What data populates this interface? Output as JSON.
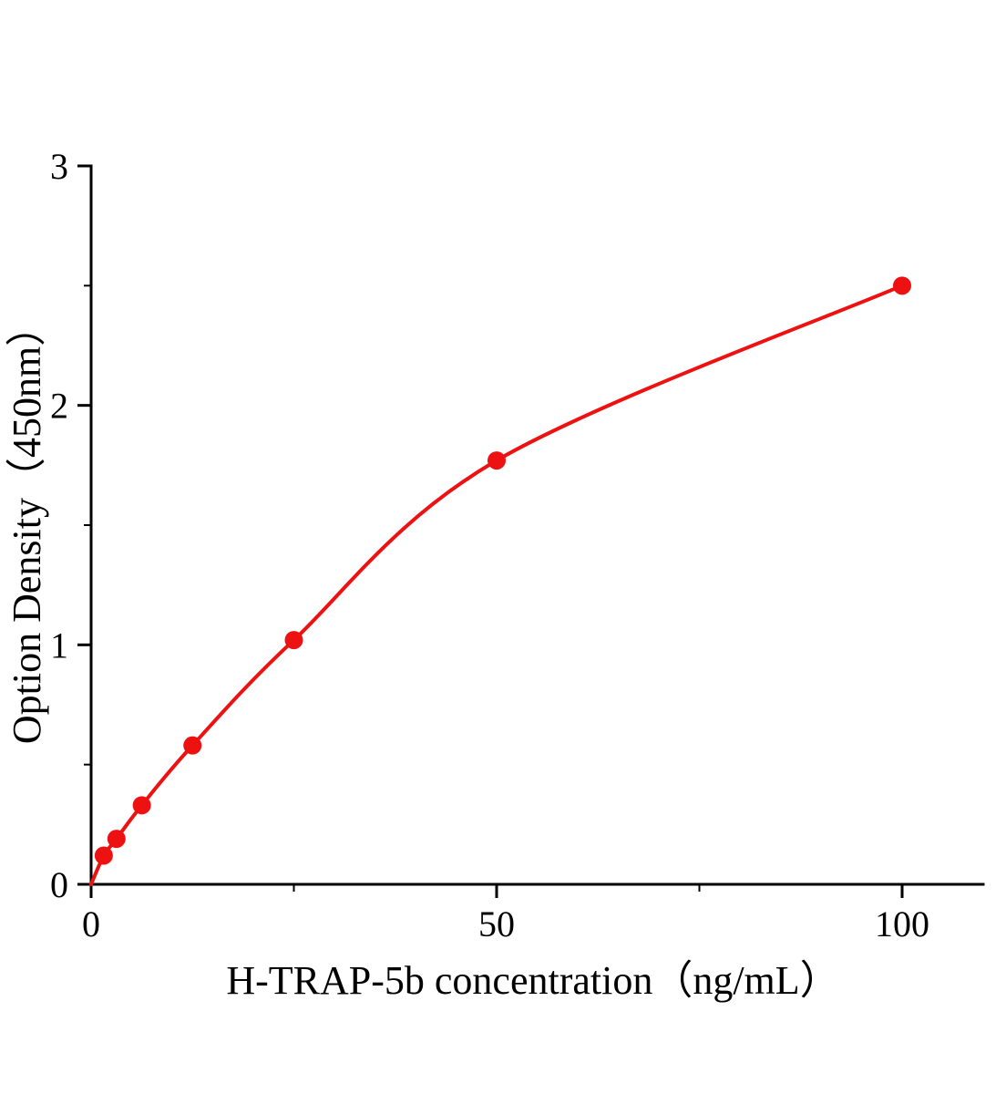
{
  "chart_data": {
    "type": "scatter",
    "title": "",
    "xlabel": "H-TRAP-5b concentration（ng/mL）",
    "ylabel": "Option Density（450nm）",
    "x": [
      1.56,
      3.125,
      6.25,
      12.5,
      25,
      50,
      100
    ],
    "y": [
      0.12,
      0.19,
      0.33,
      0.58,
      1.02,
      1.77,
      2.5
    ],
    "curve_start_x": 0,
    "curve_start_y": 0,
    "xlim": [
      0,
      110
    ],
    "ylim": [
      0,
      3
    ],
    "x_major_ticks": [
      0,
      50,
      100
    ],
    "x_minor_ticks": [
      25,
      75
    ],
    "y_major_ticks": [
      0,
      1,
      2,
      3
    ],
    "y_minor_ticks": [
      0.5,
      1.5,
      2.5
    ],
    "grid": false,
    "legend": "none",
    "line_color": "#ee1111",
    "point_color": "#ee1111",
    "axis_color": "#000000"
  }
}
